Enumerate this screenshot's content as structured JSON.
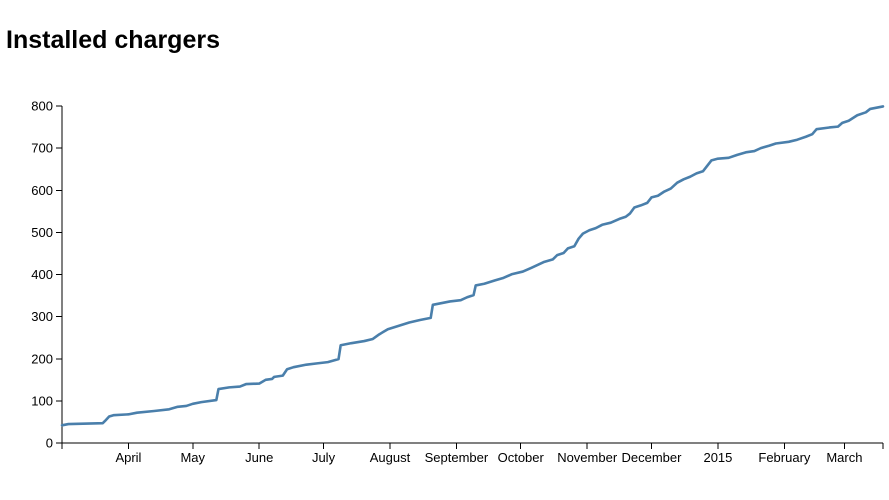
{
  "chart_data": {
    "type": "line",
    "title": "Installed chargers",
    "xlabel": "",
    "ylabel": "",
    "x_axis": {
      "type": "date",
      "range": [
        "2014-03-01",
        "2015-03-19"
      ],
      "ticks": [
        {
          "date": "2014-04-01",
          "label": "April"
        },
        {
          "date": "2014-05-01",
          "label": "May"
        },
        {
          "date": "2014-06-01",
          "label": "June"
        },
        {
          "date": "2014-07-01",
          "label": "July"
        },
        {
          "date": "2014-08-01",
          "label": "August"
        },
        {
          "date": "2014-09-01",
          "label": "September"
        },
        {
          "date": "2014-10-01",
          "label": "October"
        },
        {
          "date": "2014-11-01",
          "label": "November"
        },
        {
          "date": "2014-12-01",
          "label": "December"
        },
        {
          "date": "2015-01-01",
          "label": "2015"
        },
        {
          "date": "2015-02-01",
          "label": "February"
        },
        {
          "date": "2015-03-01",
          "label": "March"
        }
      ]
    },
    "ylim": [
      0,
      800
    ],
    "y_ticks": [
      0,
      100,
      200,
      300,
      400,
      500,
      600,
      700,
      800
    ],
    "grid": false,
    "legend": "none",
    "series": [
      {
        "color": "#4a7fab",
        "points": [
          [
            "2014-03-01",
            42
          ],
          [
            "2014-03-04",
            45
          ],
          [
            "2014-03-20",
            47
          ],
          [
            "2014-03-21",
            52
          ],
          [
            "2014-03-23",
            63
          ],
          [
            "2014-03-25",
            66
          ],
          [
            "2014-04-01",
            68
          ],
          [
            "2014-04-05",
            72
          ],
          [
            "2014-04-13",
            76
          ],
          [
            "2014-04-20",
            80
          ],
          [
            "2014-04-24",
            86
          ],
          [
            "2014-04-28",
            88
          ],
          [
            "2014-05-01",
            93
          ],
          [
            "2014-05-05",
            97
          ],
          [
            "2014-05-12",
            102
          ],
          [
            "2014-05-13",
            128
          ],
          [
            "2014-05-18",
            132
          ],
          [
            "2014-05-23",
            134
          ],
          [
            "2014-05-26",
            140
          ],
          [
            "2014-06-01",
            141
          ],
          [
            "2014-06-04",
            150
          ],
          [
            "2014-06-07",
            152
          ],
          [
            "2014-06-08",
            157
          ],
          [
            "2014-06-12",
            160
          ],
          [
            "2014-06-14",
            175
          ],
          [
            "2014-06-17",
            180
          ],
          [
            "2014-06-23",
            186
          ],
          [
            "2014-06-28",
            189
          ],
          [
            "2014-07-03",
            192
          ],
          [
            "2014-07-08",
            199
          ],
          [
            "2014-07-09",
            232
          ],
          [
            "2014-07-14",
            237
          ],
          [
            "2014-07-20",
            242
          ],
          [
            "2014-07-24",
            247
          ],
          [
            "2014-07-27",
            258
          ],
          [
            "2014-07-31",
            270
          ],
          [
            "2014-08-05",
            278
          ],
          [
            "2014-08-10",
            286
          ],
          [
            "2014-08-15",
            292
          ],
          [
            "2014-08-20",
            297
          ],
          [
            "2014-08-21",
            328
          ],
          [
            "2014-08-24",
            331
          ],
          [
            "2014-08-29",
            336
          ],
          [
            "2014-09-03",
            339
          ],
          [
            "2014-09-06",
            346
          ],
          [
            "2014-09-09",
            351
          ],
          [
            "2014-09-10",
            374
          ],
          [
            "2014-09-14",
            378
          ],
          [
            "2014-09-19",
            386
          ],
          [
            "2014-09-23",
            392
          ],
          [
            "2014-09-27",
            401
          ],
          [
            "2014-10-02",
            407
          ],
          [
            "2014-10-06",
            416
          ],
          [
            "2014-10-12",
            430
          ],
          [
            "2014-10-16",
            436
          ],
          [
            "2014-10-18",
            446
          ],
          [
            "2014-10-21",
            451
          ],
          [
            "2014-10-23",
            462
          ],
          [
            "2014-10-26",
            467
          ],
          [
            "2014-10-28",
            485
          ],
          [
            "2014-10-30",
            497
          ],
          [
            "2014-11-02",
            505
          ],
          [
            "2014-11-05",
            510
          ],
          [
            "2014-11-08",
            518
          ],
          [
            "2014-11-12",
            523
          ],
          [
            "2014-11-16",
            532
          ],
          [
            "2014-11-19",
            537
          ],
          [
            "2014-11-21",
            545
          ],
          [
            "2014-11-23",
            559
          ],
          [
            "2014-11-26",
            564
          ],
          [
            "2014-11-29",
            570
          ],
          [
            "2014-12-01",
            583
          ],
          [
            "2014-12-04",
            587
          ],
          [
            "2014-12-07",
            597
          ],
          [
            "2014-12-10",
            604
          ],
          [
            "2014-12-13",
            618
          ],
          [
            "2014-12-16",
            626
          ],
          [
            "2014-12-19",
            632
          ],
          [
            "2014-12-22",
            640
          ],
          [
            "2014-12-25",
            645
          ],
          [
            "2014-12-29",
            671
          ],
          [
            "2015-01-01",
            675
          ],
          [
            "2015-01-06",
            677
          ],
          [
            "2015-01-10",
            684
          ],
          [
            "2015-01-14",
            690
          ],
          [
            "2015-01-18",
            693
          ],
          [
            "2015-01-21",
            700
          ],
          [
            "2015-01-25",
            706
          ],
          [
            "2015-01-28",
            711
          ],
          [
            "2015-02-03",
            715
          ],
          [
            "2015-02-07",
            720
          ],
          [
            "2015-02-11",
            727
          ],
          [
            "2015-02-14",
            733
          ],
          [
            "2015-02-16",
            745
          ],
          [
            "2015-02-22",
            749
          ],
          [
            "2015-02-26",
            751
          ],
          [
            "2015-02-28",
            760
          ],
          [
            "2015-03-03",
            765
          ],
          [
            "2015-03-07",
            778
          ],
          [
            "2015-03-11",
            785
          ],
          [
            "2015-03-13",
            793
          ],
          [
            "2015-03-19",
            799
          ]
        ]
      }
    ]
  }
}
